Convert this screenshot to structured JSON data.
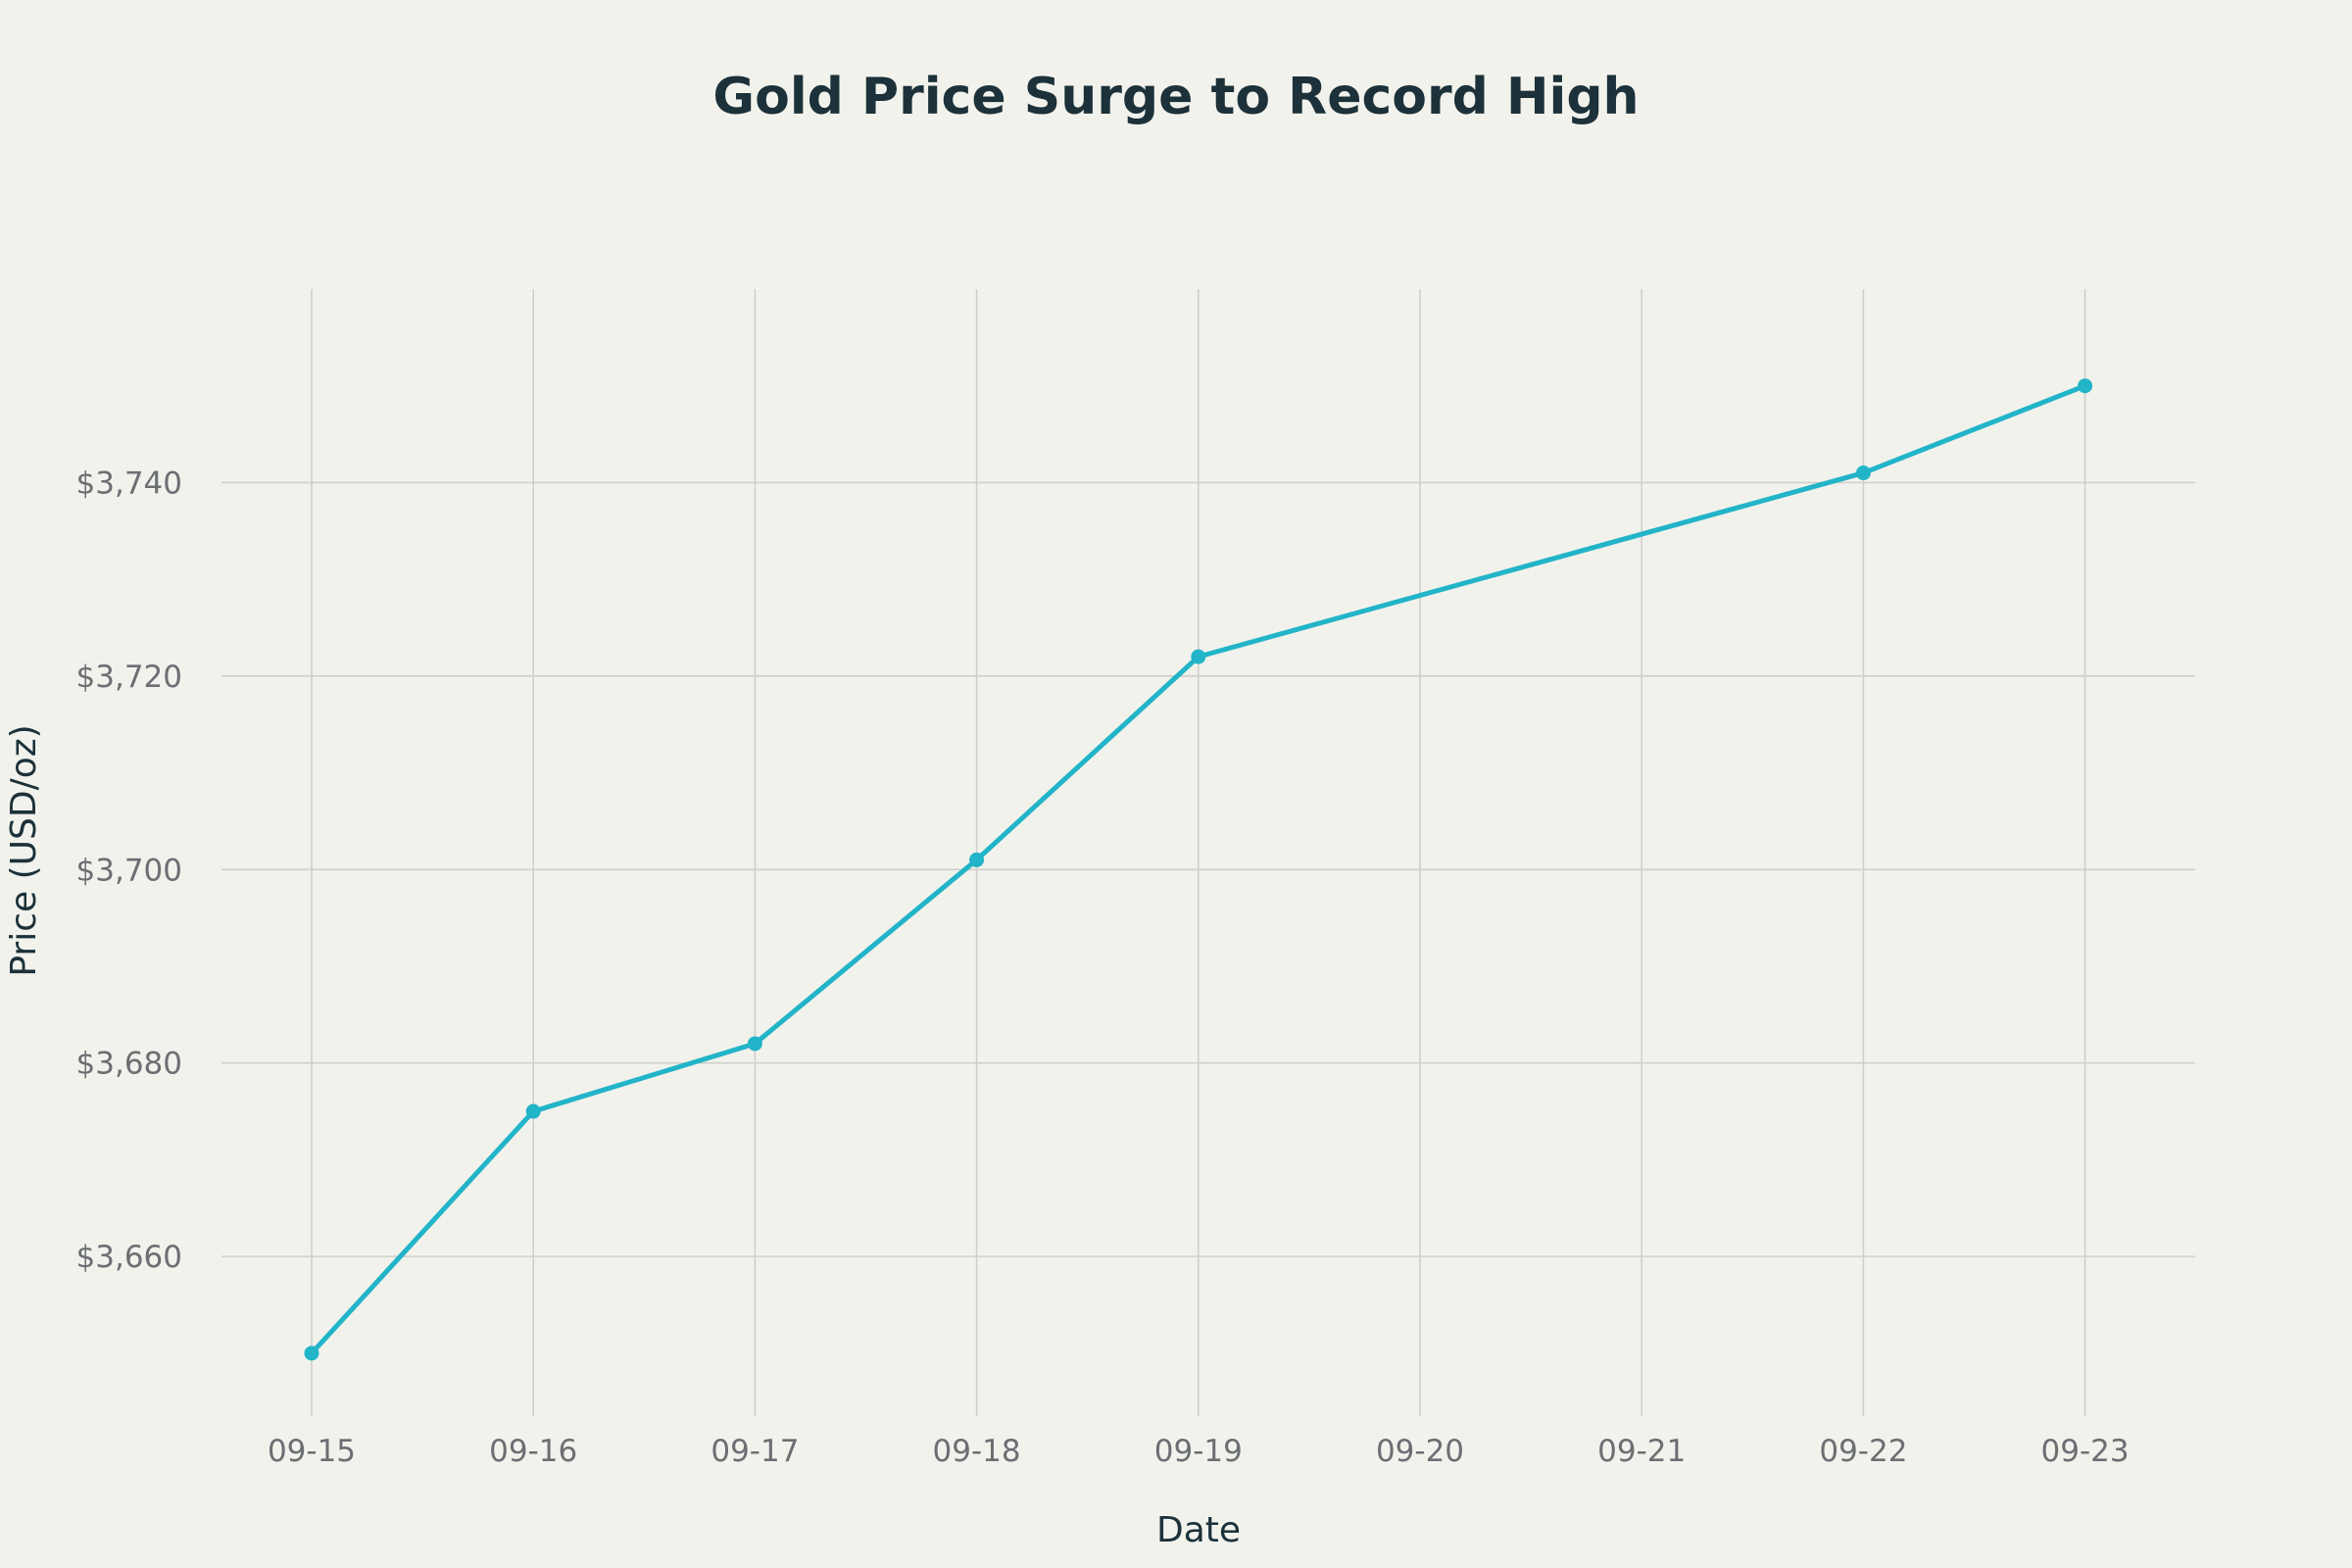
{
  "chart_data": {
    "type": "line",
    "title": "Gold Price Surge to Record High",
    "xlabel": "Date",
    "ylabel": "Price (USD/oz)",
    "x_ticks": [
      "09-15",
      "09-16",
      "09-17",
      "09-18",
      "09-19",
      "09-20",
      "09-21",
      "09-22",
      "09-23"
    ],
    "y_ticks": [
      3660,
      3680,
      3700,
      3720,
      3740
    ],
    "y_tick_labels": [
      "$3,660",
      "$3,680",
      "$3,700",
      "$3,720",
      "$3,740"
    ],
    "ylim": [
      3643.5,
      3760
    ],
    "xlim": [
      "09-14.5",
      "09-23.5"
    ],
    "grid": true,
    "series": [
      {
        "color": "#22b4c8",
        "points": [
          {
            "x": "09-15",
            "y": 3650
          },
          {
            "x": "09-16",
            "y": 3675
          },
          {
            "x": "09-17",
            "y": 3682
          },
          {
            "x": "09-18",
            "y": 3701
          },
          {
            "x": "09-19",
            "y": 3722
          },
          {
            "x": "09-22",
            "y": 3741
          },
          {
            "x": "09-23",
            "y": 3750
          }
        ]
      }
    ]
  }
}
